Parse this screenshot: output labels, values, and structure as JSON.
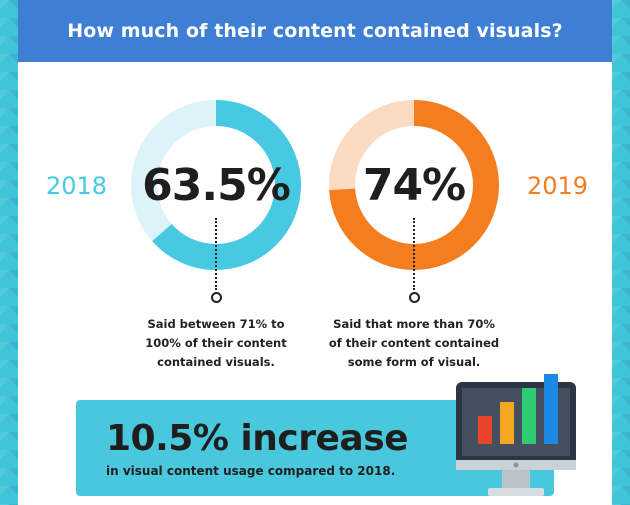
{
  "header": {
    "title": "How much of their content contained visuals?"
  },
  "chart_data": [
    {
      "type": "pie",
      "style": "donut",
      "label": "2018",
      "value_label": "63.5%",
      "values": [
        63.5,
        36.5
      ],
      "colors": [
        "#48c9e2",
        "#dcf3fa"
      ],
      "caption": [
        "Said between 71% to",
        "100% of their content",
        "contained visuals."
      ]
    },
    {
      "type": "pie",
      "style": "donut",
      "label": "2019",
      "value_label": "74%",
      "values": [
        74,
        26
      ],
      "colors": [
        "#f47d20",
        "#fbdcc3"
      ],
      "caption": [
        "Said that more than 70%",
        "of their content contained",
        "some form of visual."
      ]
    }
  ],
  "increase": {
    "headline": "10.5% increase",
    "subtext": "in visual content usage compared to 2018."
  },
  "illustration": {
    "name": "monitor-bar-chart-icon",
    "bar_values": [
      2,
      3,
      4,
      5
    ],
    "bar_colors": [
      "#e8442b",
      "#f5a623",
      "#2ecc71",
      "#1e88e5"
    ]
  },
  "colors": {
    "background": "#3fc4d8",
    "header": "#3f7fd3",
    "year_2018": "#48c9e2",
    "year_2019": "#f47d20",
    "highlight_box": "#49c8dd"
  }
}
